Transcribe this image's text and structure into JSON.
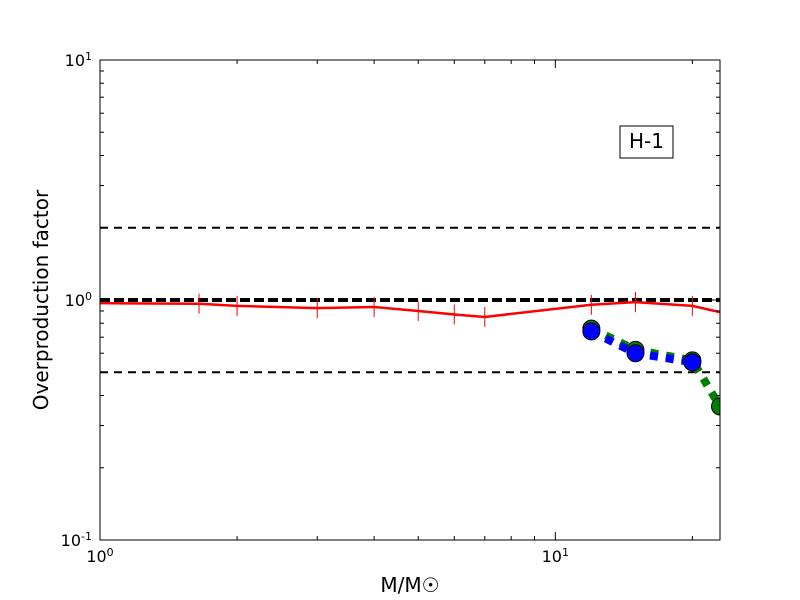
{
  "chart_data": {
    "type": "line",
    "x_scale": "log",
    "y_scale": "log",
    "xlabel": "M/M☉",
    "ylabel": "Overproduction factor",
    "annotation": "H-1",
    "xlim": [
      1,
      23
    ],
    "ylim": [
      0.1,
      10
    ],
    "x_tick_labels": [
      {
        "value": 1,
        "base": "10",
        "exp": "0"
      },
      {
        "value": 10,
        "base": "10",
        "exp": "1"
      }
    ],
    "y_tick_labels": [
      {
        "value": 0.1,
        "base": "10",
        "exp": "-1"
      },
      {
        "value": 1,
        "base": "10",
        "exp": "0"
      },
      {
        "value": 10,
        "base": "10",
        "exp": "1"
      }
    ],
    "reference_lines": [
      {
        "y": 2.0,
        "color": "#000000",
        "style": "dashed",
        "weight": "thin"
      },
      {
        "y": 1.0,
        "color": "#000000",
        "style": "dashed",
        "weight": "thick"
      },
      {
        "y": 0.5,
        "color": "#000000",
        "style": "dashed",
        "weight": "thin"
      }
    ],
    "series": [
      {
        "style": "solid",
        "color": "#ff0000",
        "marker": "vline",
        "x": [
          1.0,
          1.65,
          2.0,
          3.0,
          4.0,
          5.0,
          6.0,
          7.0,
          12.0,
          15.0,
          20.0,
          23.0
        ],
        "y": [
          0.97,
          0.965,
          0.945,
          0.925,
          0.935,
          0.9,
          0.87,
          0.85,
          0.955,
          0.98,
          0.945,
          0.89
        ]
      },
      {
        "style": "dotted",
        "color": "#008000",
        "marker": "circle",
        "marker_fill": "#008000",
        "x": [
          12,
          15,
          20,
          23
        ],
        "y": [
          0.76,
          0.62,
          0.56,
          0.36
        ]
      },
      {
        "style": "dotted",
        "color": "#0000ff",
        "marker": "circle",
        "marker_fill": "#0000ff",
        "x": [
          12,
          15,
          20
        ],
        "y": [
          0.74,
          0.6,
          0.55
        ]
      }
    ]
  }
}
